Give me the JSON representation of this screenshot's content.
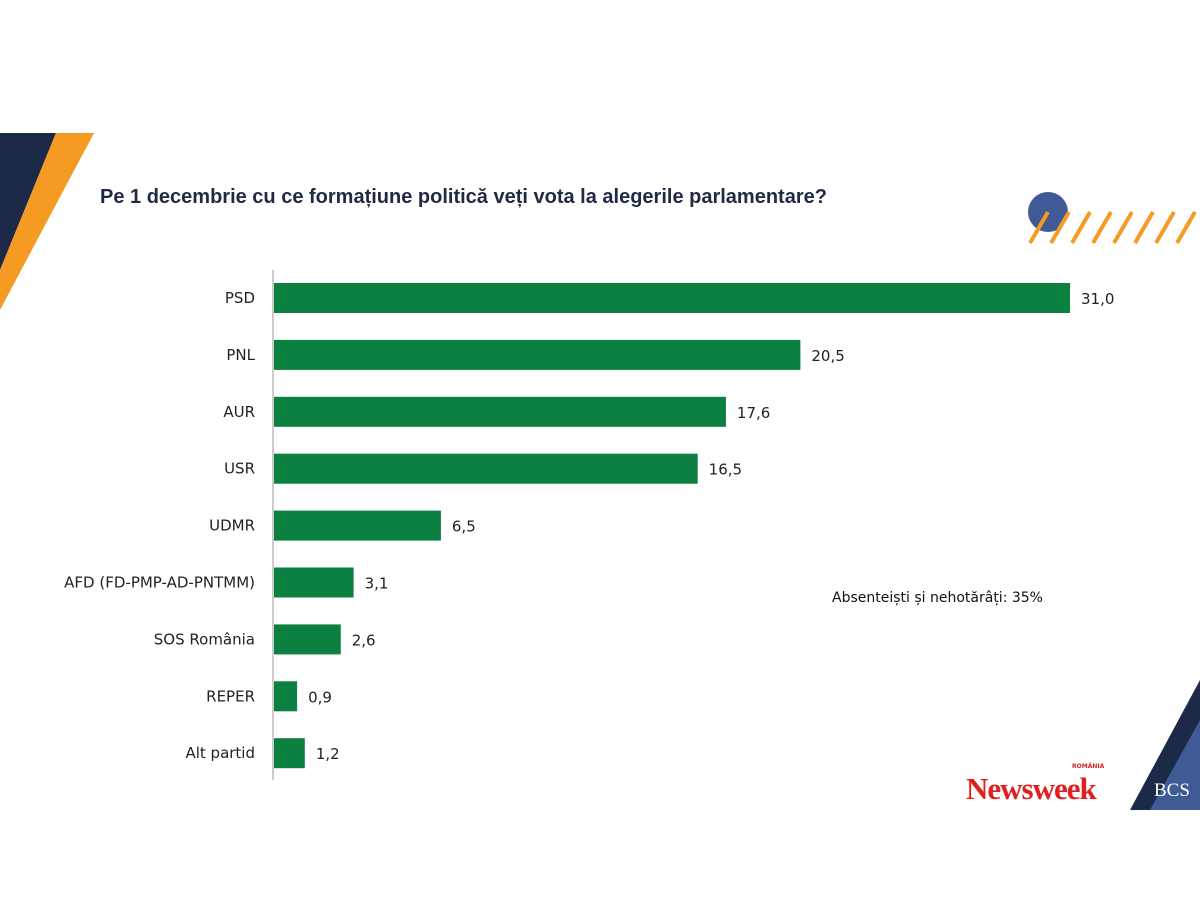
{
  "chart_data": {
    "type": "bar",
    "orientation": "horizontal",
    "title": "Pe 1 decembrie cu ce formațiune politică veți vota la alegerile parlamentare?",
    "categories": [
      "PSD",
      "PNL",
      "AUR",
      "USR",
      "UDMR",
      "AFD (FD-PMP-AD-PNTMM)",
      "SOS România",
      "REPER",
      "Alt partid"
    ],
    "values": [
      31.0,
      20.5,
      17.6,
      16.5,
      6.5,
      3.1,
      2.6,
      0.9,
      1.2
    ],
    "value_labels": [
      "31,0",
      "20,5",
      "17,6",
      "16,5",
      "6,5",
      "3,1",
      "2,6",
      "0,9",
      "1,2"
    ],
    "annotation": "Absenteiști și nehotărâți: 35%",
    "bar_color": "#0c8040",
    "grid": false,
    "legend": "none"
  },
  "logos": {
    "newsweek": "Newsweek",
    "newsweek_sub": "ROMÂNIA",
    "bcs": "BCS"
  },
  "colors": {
    "navy": "#1c2a48",
    "orange": "#f59a23",
    "blue": "#3f5a95"
  }
}
